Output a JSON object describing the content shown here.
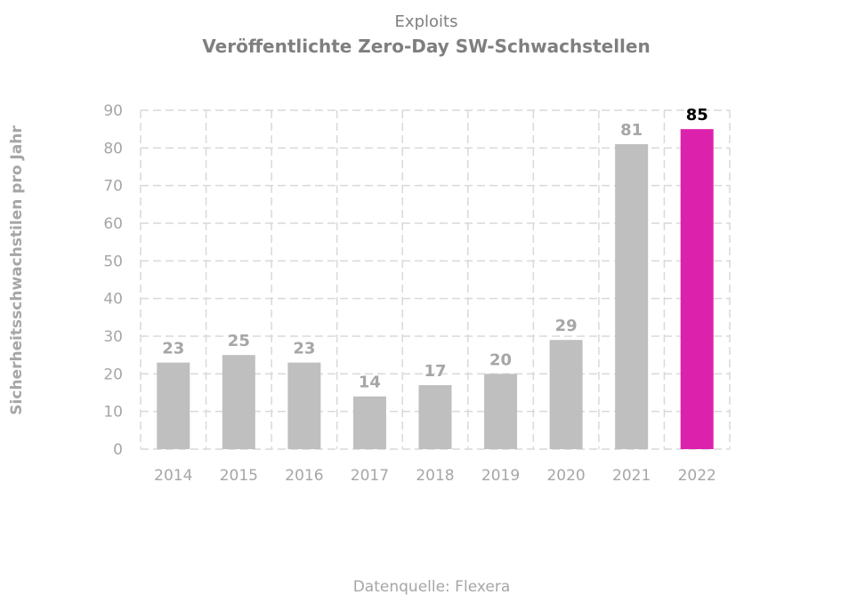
{
  "chart_data": {
    "type": "bar",
    "supertitle": "Exploits",
    "title": "Veröffentlichte Zero-Day SW-Schwachstellen",
    "xlabel": "",
    "ylabel": "Sicherheitsschwachstilen pro Jahr",
    "categories": [
      "2014",
      "2015",
      "2016",
      "2017",
      "2018",
      "2019",
      "2020",
      "2021",
      "2022"
    ],
    "values": [
      23,
      25,
      23,
      14,
      17,
      20,
      29,
      81,
      85
    ],
    "ylim": [
      0,
      90
    ],
    "yticks": [
      0,
      10,
      20,
      30,
      40,
      50,
      60,
      70,
      80,
      90
    ],
    "grid": true,
    "legend": "none",
    "colors": {
      "bar": "#bfbfbf",
      "highlight_bar": "#dc22ad",
      "data_label": "#a6a6a6",
      "highlight_label": "#000000",
      "grid": "#d9d9d9",
      "text": "#7f7f7f"
    },
    "highlight_category": "2022",
    "source": "Datenquelle: Flexera"
  }
}
